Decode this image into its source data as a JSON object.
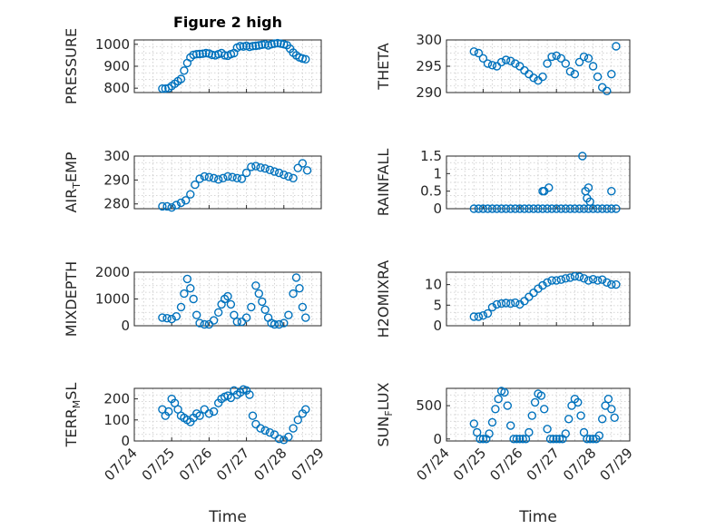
{
  "figure": {
    "title": "Figure 2 high",
    "marker_color": "#0072BD"
  },
  "chart_data": [
    {
      "type": "scatter",
      "title": "Figure 2 high",
      "ylabel": "PRESSURE",
      "xlabel": "",
      "xlim": [
        "07/24",
        "07/29"
      ],
      "ylim": [
        780,
        1020
      ],
      "yticks": [
        800,
        900,
        1000
      ],
      "ytick_labels": [
        "800",
        "900",
        "1000"
      ],
      "xticks": [
        "07/24",
        "07/25",
        "07/26",
        "07/27",
        "07/28",
        "07/29"
      ],
      "xtick_labels": [],
      "grid": true,
      "series": [
        {
          "x": [
            "07/24 18:00",
            "07/24 20:00",
            "07/24 22:00",
            "07/25 00:00",
            "07/25 02:00",
            "07/25 04:00",
            "07/25 06:00",
            "07/25 08:00",
            "07/25 10:00",
            "07/25 12:00",
            "07/25 14:00",
            "07/25 16:00",
            "07/25 18:00",
            "07/25 20:00",
            "07/25 22:00",
            "07/26 00:00",
            "07/26 02:00",
            "07/26 04:00",
            "07/26 06:00",
            "07/26 08:00",
            "07/26 10:00",
            "07/26 12:00",
            "07/26 14:00",
            "07/26 16:00",
            "07/26 18:00",
            "07/26 20:00",
            "07/26 22:00",
            "07/27 00:00",
            "07/27 02:00",
            "07/27 04:00",
            "07/27 06:00",
            "07/27 08:00",
            "07/27 10:00",
            "07/27 12:00",
            "07/27 14:00",
            "07/27 16:00",
            "07/27 18:00",
            "07/27 20:00",
            "07/27 22:00",
            "07/28 00:00",
            "07/28 02:00",
            "07/28 04:00",
            "07/28 06:00",
            "07/28 08:00",
            "07/28 10:00",
            "07/28 12:00",
            "07/28 14:00"
          ],
          "y": [
            798,
            798,
            800,
            810,
            820,
            832,
            842,
            880,
            915,
            940,
            952,
            955,
            956,
            957,
            960,
            958,
            952,
            950,
            955,
            960,
            950,
            948,
            955,
            960,
            985,
            992,
            990,
            993,
            988,
            992,
            993,
            995,
            998,
            1000,
            995,
            1000,
            1003,
            1005,
            1003,
            1000,
            996,
            980,
            962,
            950,
            940,
            935,
            932
          ]
        }
      ]
    },
    {
      "type": "scatter",
      "ylabel": "THETA",
      "xlabel": "",
      "xlim": [
        "07/24",
        "07/29"
      ],
      "ylim": [
        290,
        300
      ],
      "yticks": [
        290,
        295,
        300
      ],
      "ytick_labels": [
        "290",
        "295",
        "300"
      ],
      "xticks": [
        "07/24",
        "07/25",
        "07/26",
        "07/27",
        "07/28",
        "07/29"
      ],
      "xtick_labels": [],
      "grid": true,
      "series": [
        {
          "x": [
            "07/24 18:00",
            "07/24 21:00",
            "07/25 00:00",
            "07/25 03:00",
            "07/25 06:00",
            "07/25 09:00",
            "07/25 12:00",
            "07/25 15:00",
            "07/25 18:00",
            "07/25 21:00",
            "07/26 00:00",
            "07/26 03:00",
            "07/26 06:00",
            "07/26 09:00",
            "07/26 12:00",
            "07/26 15:00",
            "07/26 18:00",
            "07/26 21:00",
            "07/27 00:00",
            "07/27 03:00",
            "07/27 06:00",
            "07/27 09:00",
            "07/27 12:00",
            "07/27 15:00",
            "07/27 18:00",
            "07/27 21:00",
            "07/28 00:00",
            "07/28 03:00",
            "07/28 06:00",
            "07/28 09:00",
            "07/28 12:00",
            "07/28 15:00"
          ],
          "y": [
            297.8,
            297.5,
            296.5,
            295.5,
            295.2,
            295,
            295.8,
            296.2,
            296,
            295.5,
            295,
            294.2,
            293.5,
            292.8,
            292.3,
            293,
            295.5,
            296.8,
            297,
            296.5,
            295.5,
            294,
            293.5,
            295.8,
            296.8,
            296.5,
            295,
            293,
            291,
            290.3,
            293.5,
            298.8
          ]
        }
      ]
    },
    {
      "type": "scatter",
      "ylabel": "AIR_TEMP",
      "xlabel": "",
      "xlim": [
        "07/24",
        "07/29"
      ],
      "ylim": [
        278,
        300
      ],
      "yticks": [
        280,
        290,
        300
      ],
      "ytick_labels": [
        "280",
        "290",
        "300"
      ],
      "xticks": [
        "07/24",
        "07/25",
        "07/26",
        "07/27",
        "07/28",
        "07/29"
      ],
      "xtick_labels": [],
      "grid": true,
      "series": [
        {
          "x": [
            "07/24 18:00",
            "07/24 21:00",
            "07/25 00:00",
            "07/25 03:00",
            "07/25 06:00",
            "07/25 09:00",
            "07/25 12:00",
            "07/25 15:00",
            "07/25 18:00",
            "07/25 21:00",
            "07/26 00:00",
            "07/26 03:00",
            "07/26 06:00",
            "07/26 09:00",
            "07/26 12:00",
            "07/26 15:00",
            "07/26 18:00",
            "07/26 21:00",
            "07/27 00:00",
            "07/27 03:00",
            "07/27 06:00",
            "07/27 09:00",
            "07/27 12:00",
            "07/27 15:00",
            "07/27 18:00",
            "07/27 21:00",
            "07/28 00:00",
            "07/28 03:00",
            "07/28 06:00",
            "07/28 09:00",
            "07/28 12:00",
            "07/28 15:00"
          ],
          "y": [
            279,
            279,
            278.5,
            279.5,
            280.5,
            281.5,
            284,
            288,
            290.5,
            291.5,
            291.2,
            290.8,
            290.2,
            290.8,
            291.5,
            291.2,
            290.8,
            290.5,
            293,
            295.5,
            295.8,
            295.2,
            294.8,
            294.2,
            293.5,
            293,
            292.2,
            291.5,
            290.8,
            295,
            297,
            294
          ]
        }
      ]
    },
    {
      "type": "scatter",
      "ylabel": "RAINFALL",
      "xlabel": "",
      "xlim": [
        "07/24",
        "07/29"
      ],
      "ylim": [
        0,
        1.5
      ],
      "yticks": [
        0,
        0.5,
        1,
        1.5
      ],
      "ytick_labels": [
        "0",
        "0.5",
        "1",
        "1.5"
      ],
      "xticks": [
        "07/24",
        "07/25",
        "07/26",
        "07/27",
        "07/28",
        "07/29"
      ],
      "xtick_labels": [],
      "grid": true,
      "series": [
        {
          "x": [
            "07/24 18:00",
            "07/24 21:00",
            "07/25 00:00",
            "07/25 03:00",
            "07/25 06:00",
            "07/25 09:00",
            "07/25 12:00",
            "07/25 15:00",
            "07/25 18:00",
            "07/25 21:00",
            "07/26 00:00",
            "07/26 03:00",
            "07/26 06:00",
            "07/26 09:00",
            "07/26 12:00",
            "07/26 15:00",
            "07/26 18:00",
            "07/26 21:00",
            "07/27 00:00",
            "07/27 03:00",
            "07/27 06:00",
            "07/27 09:00",
            "07/27 12:00",
            "07/27 15:00",
            "07/27 18:00",
            "07/27 21:00",
            "07/28 00:00",
            "07/28 03:00",
            "07/28 06:00",
            "07/28 09:00",
            "07/28 12:00",
            "07/28 15:00",
            "07/26 15:00",
            "07/26 16:00",
            "07/26 19:00",
            "07/27 17:00",
            "07/27 19:00",
            "07/27 20:00",
            "07/27 21:00",
            "07/27 22:00",
            "07/28 12:00"
          ],
          "y": [
            0,
            0,
            0,
            0,
            0,
            0,
            0,
            0,
            0,
            0,
            0,
            0,
            0,
            0,
            0,
            0,
            0,
            0,
            0,
            0,
            0,
            0,
            0,
            0,
            0,
            0,
            0,
            0,
            0,
            0,
            0,
            0,
            0.5,
            0.5,
            0.6,
            1.5,
            0.5,
            0.3,
            0.6,
            0.2,
            0.5
          ]
        }
      ]
    },
    {
      "type": "scatter",
      "ylabel": "MIXDEPTH",
      "xlabel": "",
      "xlim": [
        "07/24",
        "07/29"
      ],
      "ylim": [
        0,
        2000
      ],
      "yticks": [
        0,
        1000,
        2000
      ],
      "ytick_labels": [
        "0",
        "1000",
        "2000"
      ],
      "xticks": [
        "07/24",
        "07/25",
        "07/26",
        "07/27",
        "07/28",
        "07/29"
      ],
      "xtick_labels": [],
      "grid": true,
      "series": [
        {
          "x": [
            "07/24 18:00",
            "07/24 21:00",
            "07/25 00:00",
            "07/25 03:00",
            "07/25 06:00",
            "07/25 08:00",
            "07/25 10:00",
            "07/25 12:00",
            "07/25 14:00",
            "07/25 16:00",
            "07/25 18:00",
            "07/25 21:00",
            "07/26 00:00",
            "07/26 03:00",
            "07/26 06:00",
            "07/26 08:00",
            "07/26 10:00",
            "07/26 12:00",
            "07/26 14:00",
            "07/26 16:00",
            "07/26 18:00",
            "07/26 21:00",
            "07/27 00:00",
            "07/27 03:00",
            "07/27 06:00",
            "07/27 08:00",
            "07/27 10:00",
            "07/27 12:00",
            "07/27 14:00",
            "07/27 16:00",
            "07/27 18:00",
            "07/27 21:00",
            "07/28 00:00",
            "07/28 03:00",
            "07/28 06:00",
            "07/28 08:00",
            "07/28 10:00",
            "07/28 12:00",
            "07/28 14:00"
          ],
          "y": [
            300,
            280,
            250,
            350,
            700,
            1200,
            1750,
            1400,
            1000,
            400,
            100,
            50,
            50,
            200,
            500,
            800,
            1000,
            1100,
            800,
            400,
            150,
            150,
            300,
            700,
            1500,
            1200,
            900,
            600,
            300,
            100,
            50,
            50,
            100,
            400,
            1200,
            1800,
            1400,
            700,
            300
          ]
        }
      ]
    },
    {
      "type": "scatter",
      "ylabel": "H2OMIXRA",
      "xlabel": "",
      "xlim": [
        "07/24",
        "07/29"
      ],
      "ylim": [
        0,
        13
      ],
      "yticks": [
        0,
        5,
        10
      ],
      "ytick_labels": [
        "0",
        "5",
        "10"
      ],
      "xticks": [
        "07/24",
        "07/25",
        "07/26",
        "07/27",
        "07/28",
        "07/29"
      ],
      "xtick_labels": [],
      "grid": true,
      "series": [
        {
          "x": [
            "07/24 18:00",
            "07/24 21:00",
            "07/25 00:00",
            "07/25 03:00",
            "07/25 06:00",
            "07/25 09:00",
            "07/25 12:00",
            "07/25 15:00",
            "07/25 18:00",
            "07/25 21:00",
            "07/26 00:00",
            "07/26 03:00",
            "07/26 06:00",
            "07/26 09:00",
            "07/26 12:00",
            "07/26 15:00",
            "07/26 18:00",
            "07/26 21:00",
            "07/27 00:00",
            "07/27 03:00",
            "07/27 06:00",
            "07/27 09:00",
            "07/27 12:00",
            "07/27 15:00",
            "07/27 18:00",
            "07/27 21:00",
            "07/28 00:00",
            "07/28 03:00",
            "07/28 06:00",
            "07/28 09:00",
            "07/28 12:00",
            "07/28 15:00"
          ],
          "y": [
            2.2,
            2.2,
            2.5,
            3,
            4.5,
            5.2,
            5.4,
            5.5,
            5.4,
            5.6,
            5.2,
            6,
            7,
            8,
            9,
            9.8,
            10.5,
            11,
            11,
            11.2,
            11.5,
            11.7,
            12,
            11.9,
            11.5,
            11,
            11.3,
            11,
            11.2,
            10.5,
            10,
            10
          ]
        }
      ]
    },
    {
      "type": "scatter",
      "ylabel": "TERR_MSL",
      "xlabel": "Time",
      "xlim": [
        "07/24",
        "07/29"
      ],
      "ylim": [
        0,
        250
      ],
      "yticks": [
        0,
        100,
        200
      ],
      "ytick_labels": [
        "0",
        "100",
        "200"
      ],
      "xticks": [
        "07/24",
        "07/25",
        "07/26",
        "07/27",
        "07/28",
        "07/29"
      ],
      "xtick_labels": [
        "07/24",
        "07/25",
        "07/26",
        "07/27",
        "07/28",
        "07/29"
      ],
      "grid": true,
      "series": [
        {
          "x": [
            "07/24 18:00",
            "07/24 20:00",
            "07/24 22:00",
            "07/25 00:00",
            "07/25 02:00",
            "07/25 04:00",
            "07/25 06:00",
            "07/25 08:00",
            "07/25 10:00",
            "07/25 12:00",
            "07/25 14:00",
            "07/25 16:00",
            "07/25 18:00",
            "07/25 21:00",
            "07/26 00:00",
            "07/26 03:00",
            "07/26 06:00",
            "07/26 08:00",
            "07/26 10:00",
            "07/26 12:00",
            "07/26 14:00",
            "07/26 16:00",
            "07/26 18:00",
            "07/26 20:00",
            "07/26 22:00",
            "07/27 00:00",
            "07/27 02:00",
            "07/27 04:00",
            "07/27 06:00",
            "07/27 09:00",
            "07/27 12:00",
            "07/27 15:00",
            "07/27 18:00",
            "07/27 21:00",
            "07/28 00:00",
            "07/28 03:00",
            "07/28 06:00",
            "07/28 09:00",
            "07/28 12:00",
            "07/28 14:00"
          ],
          "y": [
            150,
            120,
            140,
            200,
            180,
            150,
            120,
            110,
            100,
            90,
            110,
            130,
            120,
            150,
            130,
            140,
            180,
            200,
            210,
            215,
            205,
            240,
            220,
            230,
            245,
            240,
            220,
            120,
            80,
            60,
            50,
            40,
            30,
            10,
            5,
            20,
            60,
            100,
            130,
            150
          ]
        }
      ]
    },
    {
      "type": "scatter",
      "ylabel": "SUN_FLUX",
      "xlabel": "Time",
      "xlim": [
        "07/24",
        "07/29"
      ],
      "ylim": [
        -30,
        760
      ],
      "yticks": [
        0,
        500
      ],
      "ytick_labels": [
        "0",
        "500"
      ],
      "xticks": [
        "07/24",
        "07/25",
        "07/26",
        "07/27",
        "07/28",
        "07/29"
      ],
      "xtick_labels": [
        "07/24",
        "07/25",
        "07/26",
        "07/27",
        "07/28",
        "07/29"
      ],
      "grid": true,
      "series": [
        {
          "x": [
            "07/24 18:00",
            "07/24 20:00",
            "07/24 22:00",
            "07/25 00:00",
            "07/25 02:00",
            "07/25 04:00",
            "07/25 06:00",
            "07/25 08:00",
            "07/25 10:00",
            "07/25 12:00",
            "07/25 14:00",
            "07/25 16:00",
            "07/25 18:00",
            "07/25 20:00",
            "07/25 22:00",
            "07/26 00:00",
            "07/26 02:00",
            "07/26 04:00",
            "07/26 06:00",
            "07/26 08:00",
            "07/26 10:00",
            "07/26 12:00",
            "07/26 14:00",
            "07/26 16:00",
            "07/26 18:00",
            "07/26 20:00",
            "07/26 22:00",
            "07/27 00:00",
            "07/27 02:00",
            "07/27 04:00",
            "07/27 06:00",
            "07/27 08:00",
            "07/27 10:00",
            "07/27 12:00",
            "07/27 14:00",
            "07/27 16:00",
            "07/27 18:00",
            "07/27 20:00",
            "07/27 22:00",
            "07/28 00:00",
            "07/28 02:00",
            "07/28 04:00",
            "07/28 06:00",
            "07/28 08:00",
            "07/28 10:00",
            "07/28 12:00",
            "07/28 14:00"
          ],
          "y": [
            230,
            100,
            0,
            0,
            0,
            80,
            250,
            450,
            600,
            720,
            700,
            500,
            200,
            0,
            0,
            0,
            0,
            0,
            100,
            350,
            550,
            680,
            650,
            450,
            150,
            0,
            0,
            0,
            0,
            0,
            80,
            300,
            500,
            600,
            550,
            350,
            100,
            0,
            0,
            0,
            0,
            50,
            300,
            500,
            600,
            450,
            320
          ]
        }
      ]
    }
  ]
}
